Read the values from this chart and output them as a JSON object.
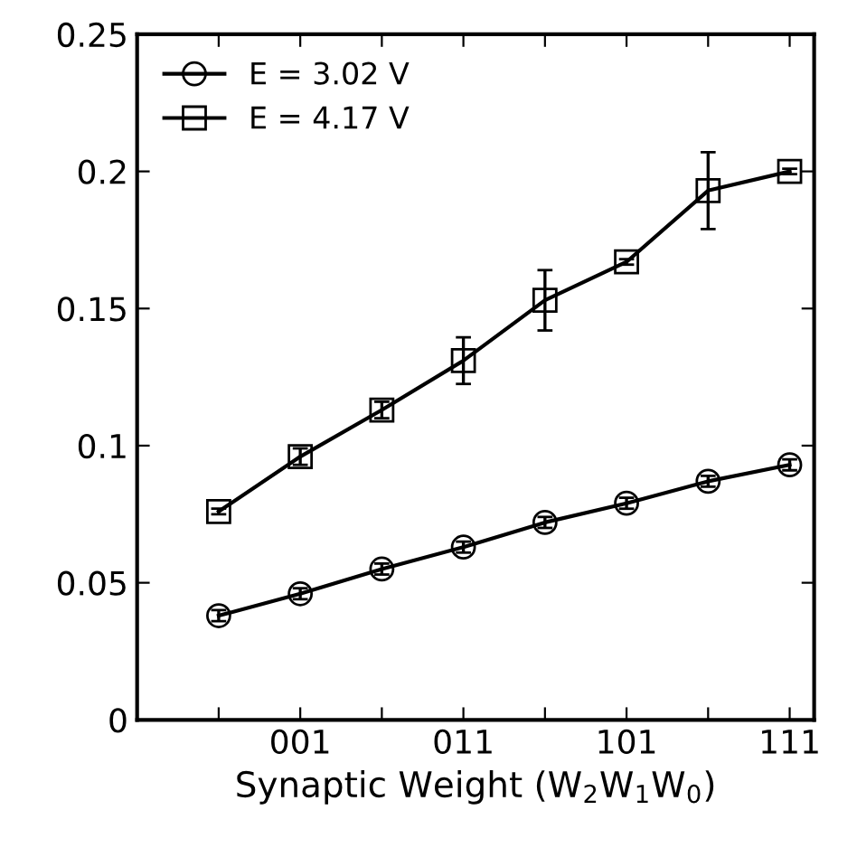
{
  "chart_data": {
    "type": "line",
    "xlabel": "Synaptic Weight (W$_{2}$W$_{1}$W$_{0}$)",
    "categories": [
      null,
      "001",
      null,
      "011",
      null,
      "101",
      null,
      "111"
    ],
    "series": [
      {
        "name": "E = 3.02 V",
        "color": "#000000",
        "marker": "circle",
        "values": [
          0.038,
          0.046,
          0.055,
          0.063,
          0.072,
          0.079,
          0.087,
          0.093
        ],
        "errors": [
          0.002,
          0.002,
          0.002,
          0.002,
          0.002,
          0.002,
          0.002,
          0.002
        ]
      },
      {
        "name": "E = 4.17 V",
        "color": "#000000",
        "marker": "square",
        "values": [
          0.076,
          0.096,
          0.113,
          0.131,
          0.153,
          0.167,
          0.193,
          0.2
        ],
        "errors": [
          0.001,
          0.003,
          0.003,
          0.0085,
          0.011,
          0.001,
          0.014,
          0.001
        ]
      }
    ],
    "ylim": [
      0,
      0.25
    ],
    "yticks": [
      0,
      0.05,
      0.1,
      0.15,
      0.2,
      0.25
    ],
    "grid": false,
    "legend": "top left",
    "line_style": "solid"
  }
}
